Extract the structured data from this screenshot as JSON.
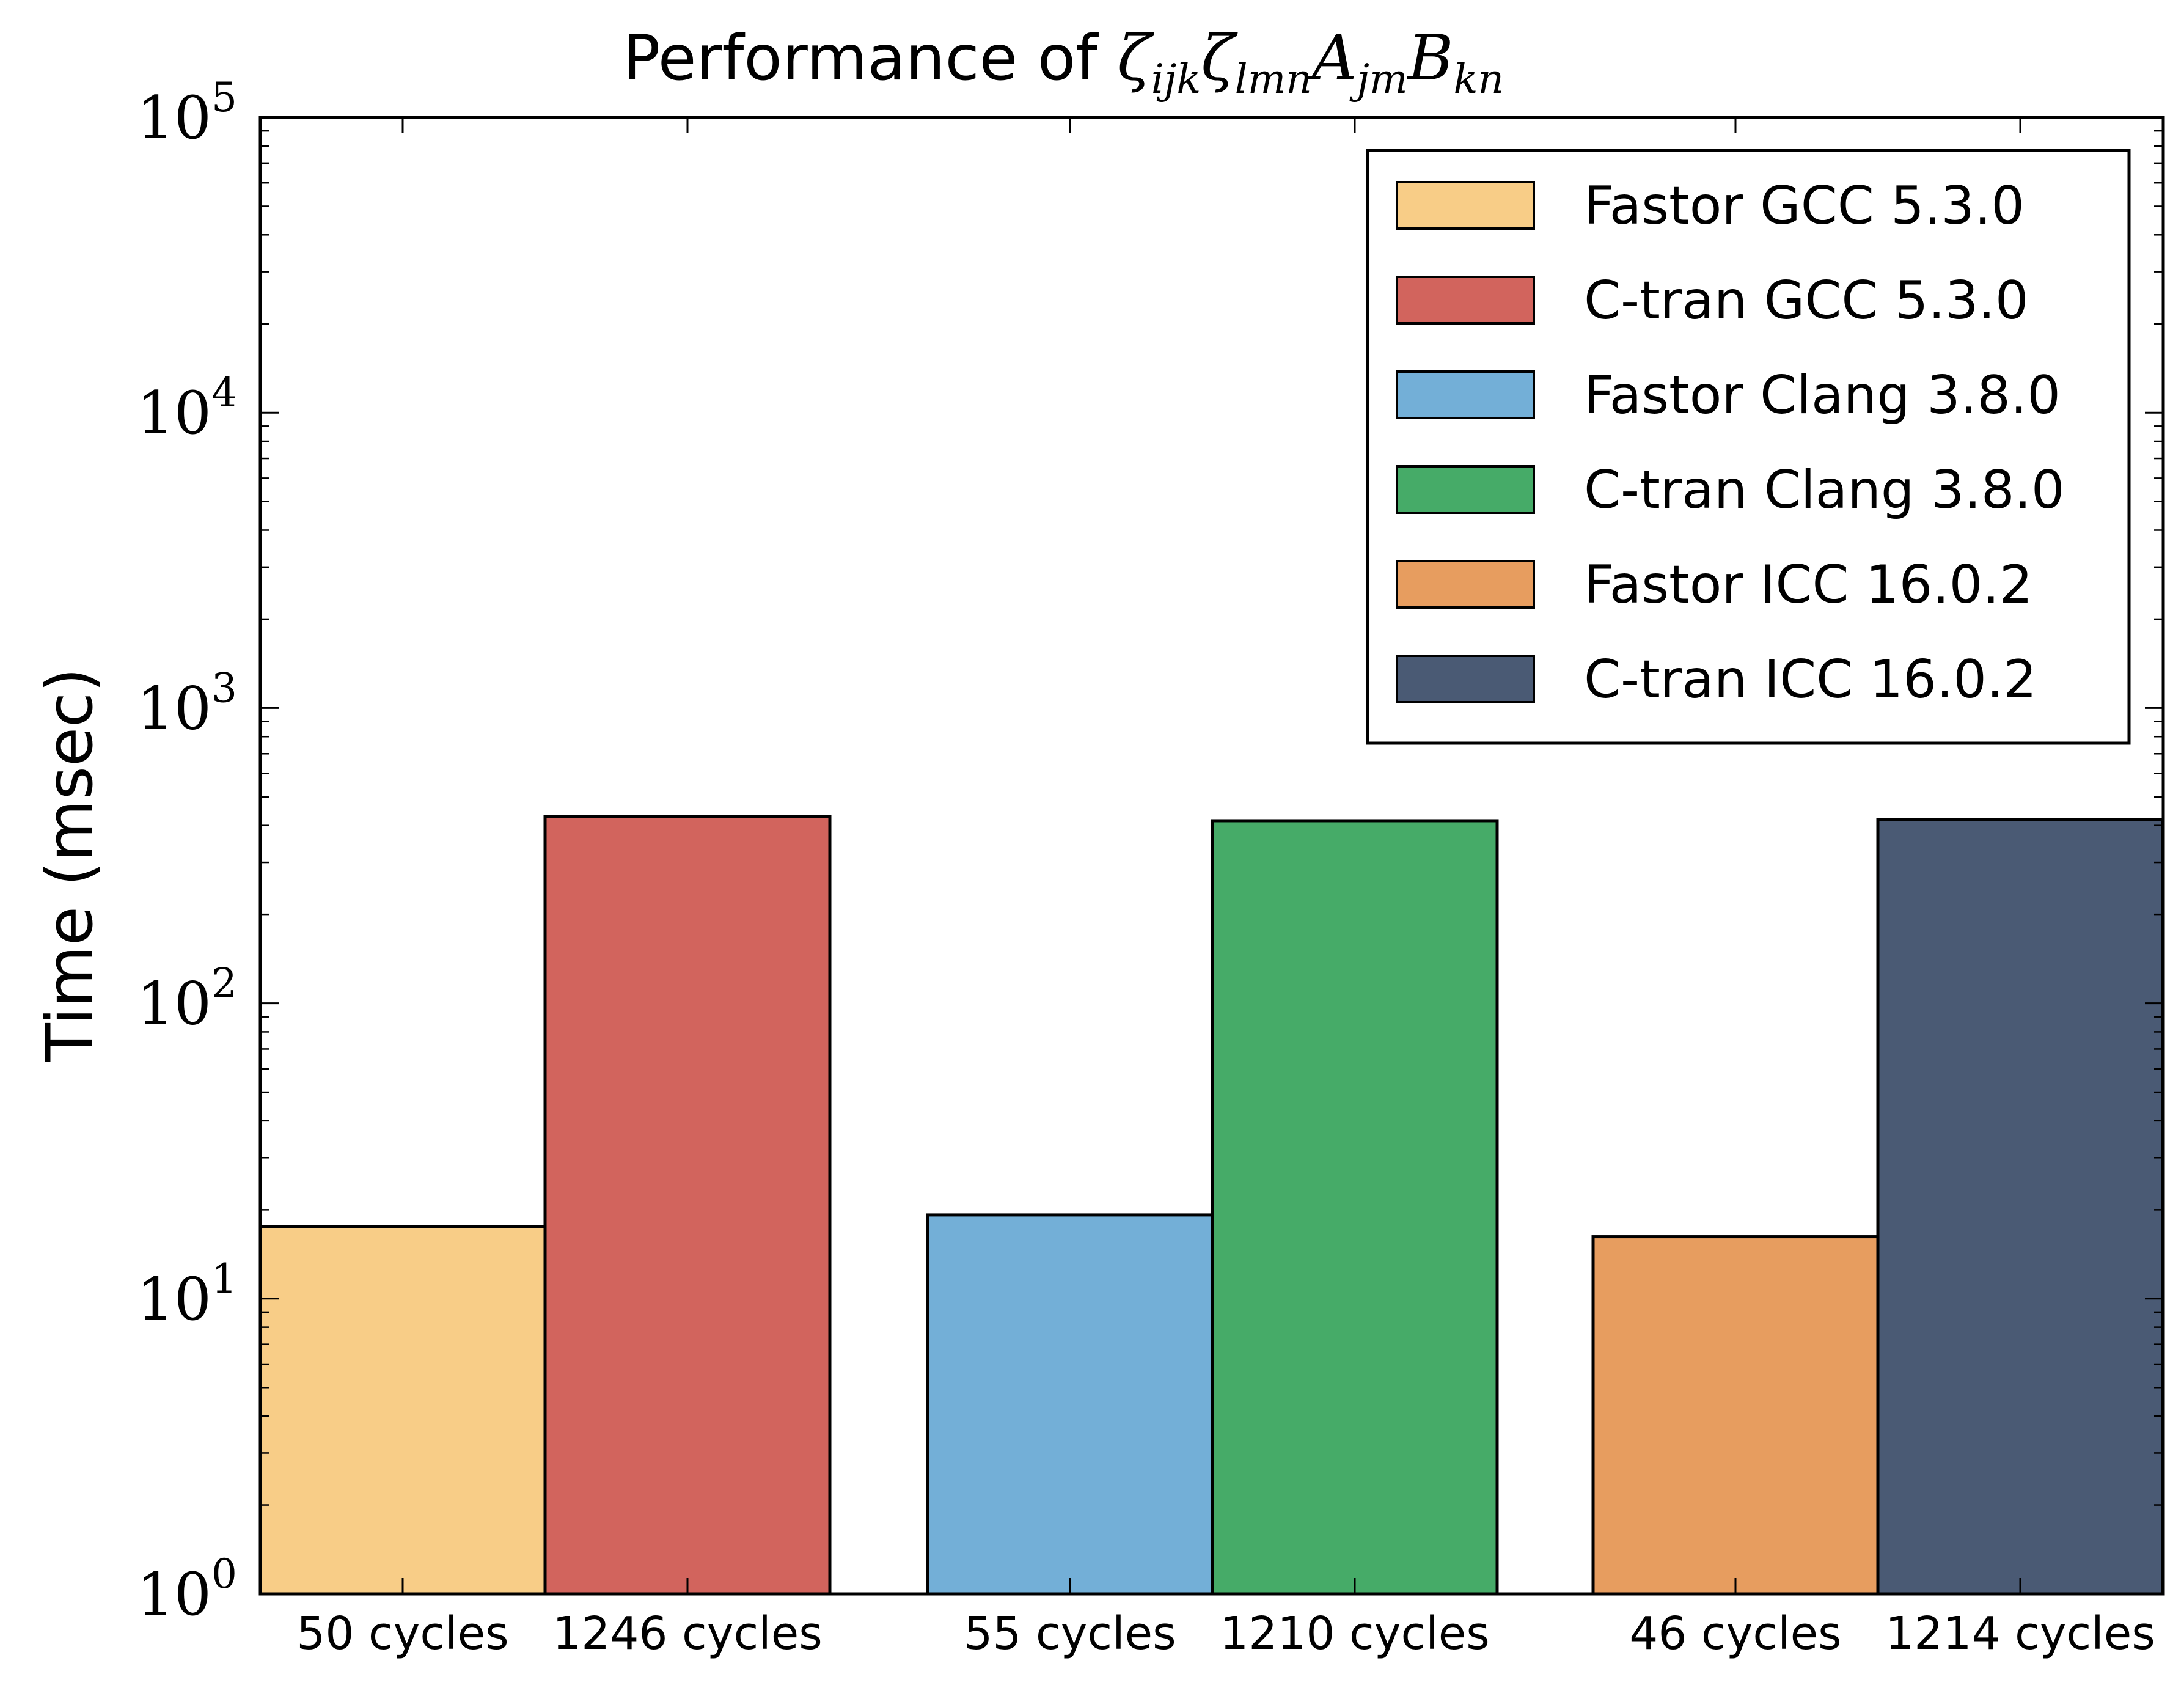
{
  "chart_data": {
    "type": "bar",
    "title": "Performance of ζijkζlmnAjmBkn",
    "title_parts": {
      "prefix": "Performance of ",
      "terms": [
        {
          "base": "ζ",
          "sub": "ijk"
        },
        {
          "base": "ζ",
          "sub": "lmn"
        },
        {
          "base": "A",
          "sub": "jm"
        },
        {
          "base": "B",
          "sub": "kn"
        }
      ]
    },
    "xlabel": "",
    "ylabel": "Time (msec)",
    "yscale": "log",
    "ylim": [
      1,
      100000
    ],
    "yticks": [
      {
        "base": "10",
        "exp": "0",
        "value": 1
      },
      {
        "base": "10",
        "exp": "1",
        "value": 10
      },
      {
        "base": "10",
        "exp": "2",
        "value": 100
      },
      {
        "base": "10",
        "exp": "3",
        "value": 1000
      },
      {
        "base": "10",
        "exp": "4",
        "value": 10000
      },
      {
        "base": "10",
        "exp": "5",
        "value": 100000
      }
    ],
    "bars": [
      {
        "series": "Fastor GCC 5.3.0",
        "label": "50 cycles",
        "value": 17.5
      },
      {
        "series": "C-tran GCC 5.3.0",
        "label": "1246 cycles",
        "value": 430
      },
      {
        "series": "Fastor Clang 3.8.0",
        "label": "55 cycles",
        "value": 19.2
      },
      {
        "series": "C-tran Clang 3.8.0",
        "label": "1210 cycles",
        "value": 415
      },
      {
        "series": "Fastor ICC 16.0.2",
        "label": "46 cycles",
        "value": 16.2
      },
      {
        "series": "C-tran ICC 16.0.2",
        "label": "1214 cycles",
        "value": 418
      }
    ],
    "legend": {
      "position": "top-right",
      "entries": [
        {
          "label": "Fastor GCC 5.3.0",
          "color": "#F8CD87"
        },
        {
          "label": "C-tran GCC 5.3.0",
          "color": "#D2645D"
        },
        {
          "label": "Fastor Clang 3.8.0",
          "color": "#73AFD7"
        },
        {
          "label": "C-tran Clang 3.8.0",
          "color": "#46AB68"
        },
        {
          "label": "Fastor ICC 16.0.2",
          "color": "#E79D5F"
        },
        {
          "label": "C-tran ICC 16.0.2",
          "color": "#4A5A74"
        }
      ]
    }
  }
}
